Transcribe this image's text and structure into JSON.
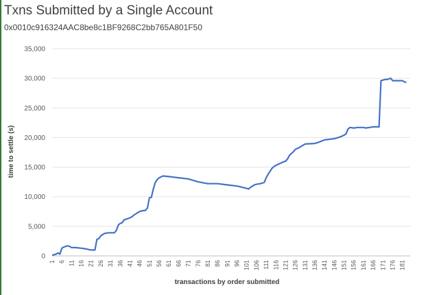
{
  "chart_data": {
    "type": "line",
    "title": "Txns Submitted by a Single Account",
    "subtitle": "0x0010c916324AAC8be8c1BF9268C2bb765A801F50",
    "xlabel": "transactions by order submitted",
    "ylabel": "time to settle (s)",
    "ylim": [
      0,
      35000
    ],
    "yticks": [
      "0",
      "5,000",
      "10,000",
      "15,000",
      "20,000",
      "25,000",
      "30,000",
      "35,000"
    ],
    "ytick_values": [
      0,
      5000,
      10000,
      15000,
      20000,
      25000,
      30000,
      35000
    ],
    "xlim": [
      1,
      185
    ],
    "xticks": [
      1,
      6,
      11,
      16,
      21,
      26,
      31,
      36,
      41,
      46,
      51,
      56,
      61,
      66,
      71,
      76,
      81,
      86,
      91,
      96,
      101,
      106,
      111,
      116,
      121,
      126,
      131,
      136,
      141,
      146,
      151,
      156,
      161,
      166,
      171,
      176,
      181
    ],
    "grid": "horizontal",
    "legend": "none",
    "line_color": "#4472c4",
    "x": [
      1,
      3,
      4,
      5,
      6,
      7,
      8,
      9,
      10,
      11,
      13,
      16,
      18,
      21,
      22,
      23,
      24,
      25,
      26,
      27,
      28,
      30,
      33,
      34,
      35,
      36,
      37,
      38,
      40,
      42,
      43,
      45,
      46,
      47,
      49,
      50,
      51,
      52,
      53,
      54,
      55,
      56,
      58,
      61,
      66,
      71,
      76,
      81,
      86,
      91,
      96,
      101,
      102,
      103,
      105,
      106,
      108,
      110,
      111,
      112,
      113,
      114,
      115,
      116,
      118,
      120,
      121,
      122,
      123,
      125,
      126,
      128,
      130,
      131,
      136,
      138,
      141,
      146,
      149,
      151,
      152,
      153,
      154,
      156,
      158,
      160,
      161,
      162,
      164,
      166,
      167,
      168,
      169,
      170,
      171,
      172,
      173,
      174,
      175,
      176,
      181,
      182,
      183
    ],
    "values": [
      100,
      300,
      500,
      300,
      1300,
      1500,
      1600,
      1700,
      1600,
      1400,
      1400,
      1300,
      1200,
      1000,
      1000,
      1000,
      2800,
      2900,
      3400,
      3600,
      3800,
      3900,
      3900,
      4300,
      5200,
      5500,
      5600,
      6100,
      6300,
      6600,
      6900,
      7300,
      7500,
      7600,
      7700,
      8100,
      9800,
      9900,
      11300,
      12400,
      12900,
      13200,
      13500,
      13400,
      13200,
      13000,
      12500,
      12200,
      12200,
      12000,
      11800,
      11400,
      11300,
      11600,
      12000,
      12100,
      12200,
      12400,
      13200,
      13800,
      14300,
      14800,
      15100,
      15300,
      15600,
      15900,
      16000,
      16400,
      17000,
      17600,
      18000,
      18300,
      18700,
      18900,
      19000,
      19200,
      19600,
      19800,
      20100,
      20400,
      20600,
      21400,
      21700,
      21600,
      21700,
      21700,
      21700,
      21600,
      21700,
      21800,
      21800,
      21800,
      21800,
      29600,
      29700,
      29800,
      29800,
      29900,
      30000,
      29600,
      29600,
      29400,
      29300
    ]
  }
}
